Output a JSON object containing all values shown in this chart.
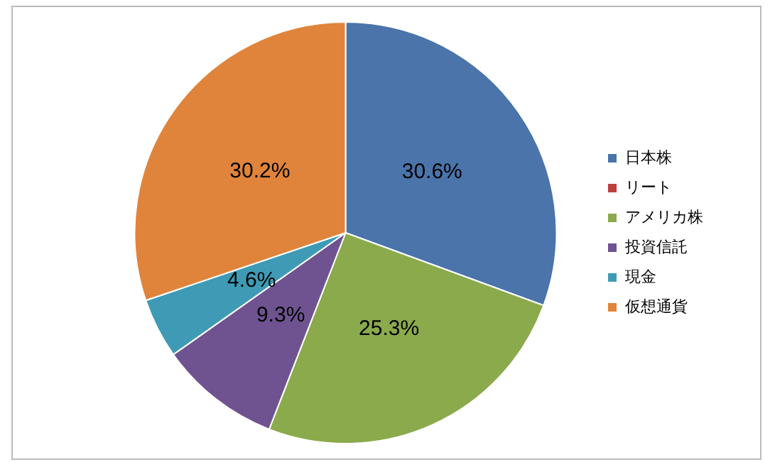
{
  "chart_data": {
    "type": "pie",
    "categories": [
      "日本株",
      "リート",
      "アメリカ株",
      "投資信託",
      "現金",
      "仮想通貨"
    ],
    "values": [
      30.6,
      0,
      25.3,
      9.3,
      4.6,
      30.2
    ],
    "colors": [
      "#4a74aa",
      "#b9403c",
      "#8aaa4b",
      "#6f5390",
      "#3f9bb5",
      "#e0843c"
    ],
    "value_labels": [
      "30.6%",
      null,
      "25.3%",
      "9.3%",
      "4.6%",
      "30.2%"
    ],
    "legend": "right"
  }
}
